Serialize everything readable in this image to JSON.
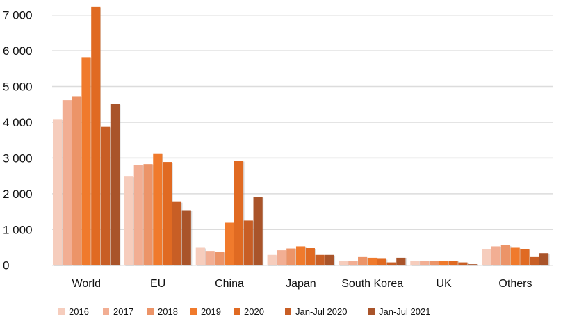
{
  "chart_data": {
    "type": "bar",
    "title": "",
    "xlabel": "",
    "ylabel": "",
    "ylim": [
      0,
      7000
    ],
    "yticks": [
      0,
      1000,
      2000,
      3000,
      4000,
      5000,
      6000,
      7000
    ],
    "ytick_labels": [
      "0",
      "1 000",
      "2 000",
      "3 000",
      "4 000",
      "5 000",
      "6 000",
      "7 000"
    ],
    "grid": true,
    "legend_position": "bottom",
    "categories": [
      "World",
      "EU",
      "China",
      "Japan",
      "South Korea",
      "UK",
      "Others"
    ],
    "series": [
      {
        "name": "2016",
        "color": "#f6cdbd",
        "values": [
          4090,
          2480,
          490,
          290,
          130,
          130,
          450
        ]
      },
      {
        "name": "2017",
        "color": "#f2ae93",
        "values": [
          4620,
          2810,
          400,
          420,
          130,
          130,
          530
        ]
      },
      {
        "name": "2018",
        "color": "#ec9468",
        "values": [
          4730,
          2830,
          370,
          470,
          230,
          130,
          560
        ]
      },
      {
        "name": "2019",
        "color": "#f07a2c",
        "values": [
          5820,
          3130,
          1190,
          530,
          210,
          130,
          490
        ]
      },
      {
        "name": "2020",
        "color": "#e06a22",
        "values": [
          7230,
          2890,
          2920,
          480,
          180,
          130,
          450
        ]
      },
      {
        "name": "Jan-Jul 2020",
        "color": "#c85e25",
        "values": [
          3870,
          1770,
          1250,
          290,
          80,
          80,
          230
        ]
      },
      {
        "name": "Jan-Jul 2021",
        "color": "#a9542a",
        "values": [
          4510,
          1540,
          1910,
          290,
          210,
          30,
          340
        ]
      }
    ]
  }
}
